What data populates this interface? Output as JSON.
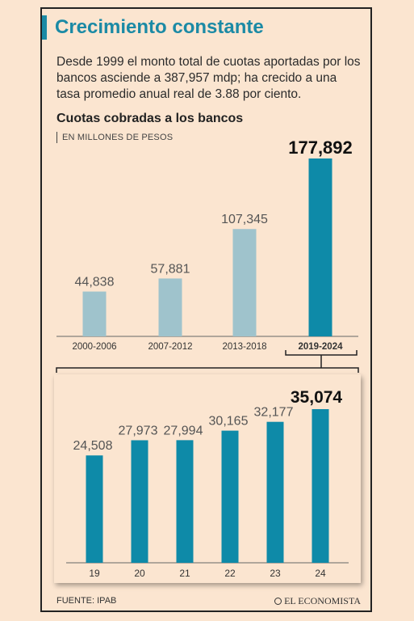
{
  "header": {
    "title": "Crecimiento constante",
    "description": "Desde 1999 el monto total de cuotas aportadas por los bancos asciende a 387,957 mdp; ha crecido a una tasa promedio anual real de 3.88 por ciento.",
    "subtitle": "Cuotas cobradas a los bancos",
    "units": "EN MILLONES DE PESOS"
  },
  "colors": {
    "light_bar": "#9fc3cc",
    "dark_bar": "#0e8aa8",
    "title": "#1b8aa5"
  },
  "chart_data": [
    {
      "type": "bar",
      "categories": [
        "2000-2006",
        "2007-2012",
        "2013-2018",
        "2019-2024"
      ],
      "values": [
        44838,
        57881,
        107345,
        177892
      ],
      "labels": [
        "44,838",
        "57,881",
        "107,345",
        "177,892"
      ],
      "highlight_index": 3,
      "xlabel": "",
      "ylabel": "",
      "ylim": [
        0,
        177892
      ]
    },
    {
      "type": "bar",
      "categories": [
        "19",
        "20",
        "21",
        "22",
        "23",
        "24"
      ],
      "values": [
        24508,
        27973,
        27994,
        30165,
        32177,
        35074
      ],
      "labels": [
        "24,508",
        "27,973",
        "27,994",
        "30,165",
        "32,177",
        "35,074"
      ],
      "highlight_index": 5,
      "xlabel": "",
      "ylabel": "",
      "ylim": [
        0,
        35074
      ]
    }
  ],
  "footer": {
    "source": "FUENTE: IPAB",
    "brand": "EL ECONOMISTA"
  }
}
